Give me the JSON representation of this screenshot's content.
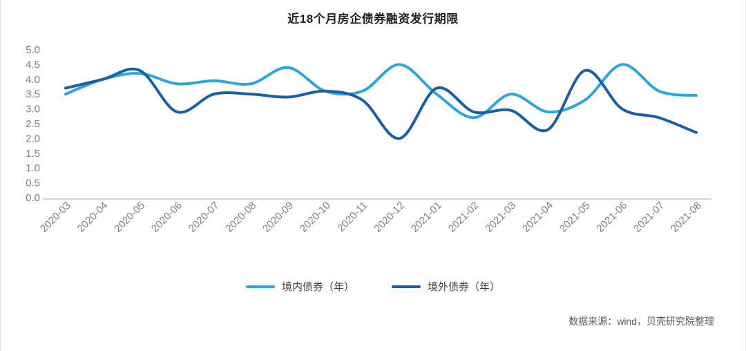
{
  "chart_data": {
    "type": "line",
    "title": "近18个月房企债券融资发行期限",
    "categories": [
      "2020-03",
      "2020-04",
      "2020-05",
      "2020-06",
      "2020-07",
      "2020-08",
      "2020-09",
      "2020-10",
      "2020-11",
      "2020-12",
      "2021-01",
      "2021-02",
      "2021-03",
      "2021-04",
      "2021-05",
      "2021-06",
      "2021-07",
      "2021-08"
    ],
    "series": [
      {
        "name": "境内债券（年）",
        "color": "#2BA6E0",
        "values": [
          3.5,
          4.0,
          4.2,
          3.85,
          3.95,
          3.85,
          4.4,
          3.6,
          3.6,
          4.5,
          3.5,
          2.7,
          3.5,
          2.9,
          3.3,
          4.5,
          3.6,
          3.45
        ]
      },
      {
        "name": "境外债券（年）",
        "color": "#1A5EA8",
        "values": [
          3.7,
          4.0,
          4.3,
          2.9,
          3.5,
          3.5,
          3.4,
          3.6,
          3.3,
          2.0,
          3.7,
          2.9,
          2.95,
          2.3,
          4.3,
          3.0,
          2.7,
          2.2
        ]
      }
    ],
    "ylim": [
      0,
      5
    ],
    "y_ticks": [
      "0.0",
      "0.5",
      "1.0",
      "1.5",
      "2.0",
      "2.5",
      "3.0",
      "3.5",
      "4.0",
      "4.5",
      "5.0"
    ],
    "grid": false,
    "smooth": true,
    "legend_position": "bottom"
  },
  "footer": {
    "source": "数据来源：wind，贝壳研究院整理"
  }
}
